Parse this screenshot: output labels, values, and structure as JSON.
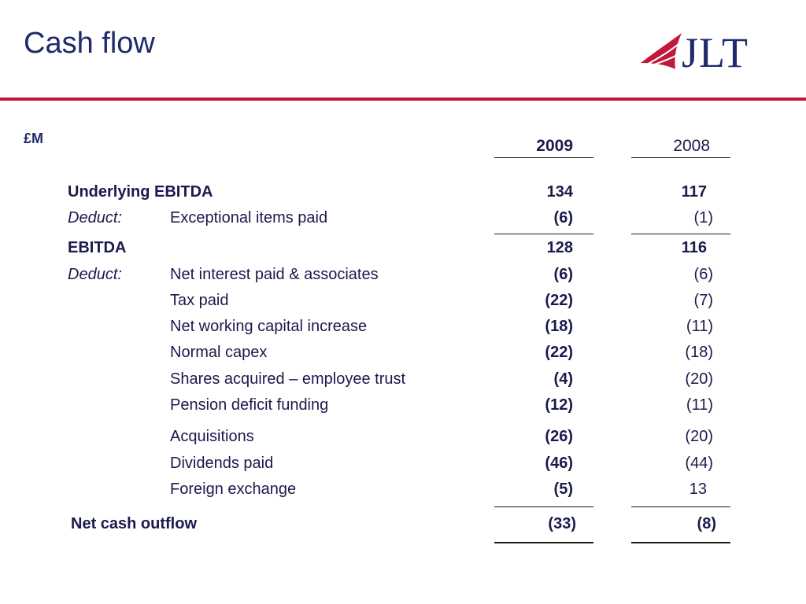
{
  "header": {
    "title": "Cash flow",
    "logo_text": "JLT",
    "accent_color": "#c0193a",
    "title_color": "#1f2a6b"
  },
  "table": {
    "unit": "£M",
    "columns": [
      "2009",
      "2008"
    ],
    "rows": [
      {
        "prefix": "",
        "label": "Underlying EBITDA",
        "y2009": "134",
        "y2008": "117"
      },
      {
        "prefix": "Deduct:",
        "label": "Exceptional items paid",
        "y2009": "(6)",
        "y2008": "(1)"
      },
      {
        "prefix": "",
        "label": "EBITDA",
        "y2009": "128",
        "y2008": "116"
      },
      {
        "prefix": "Deduct:",
        "label": "Net interest paid & associates",
        "y2009": "(6)",
        "y2008": "(6)"
      },
      {
        "prefix": "",
        "label": "Tax paid",
        "y2009": "(22)",
        "y2008": "(7)"
      },
      {
        "prefix": "",
        "label": "Net working capital increase",
        "y2009": "(18)",
        "y2008": "(11)"
      },
      {
        "prefix": "",
        "label": "Normal capex",
        "y2009": "(22)",
        "y2008": "(18)"
      },
      {
        "prefix": "",
        "label": "Shares acquired – employee trust",
        "y2009": "(4)",
        "y2008": "(20)"
      },
      {
        "prefix": "",
        "label": "Pension deficit funding",
        "y2009": "(12)",
        "y2008": "(11)"
      },
      {
        "prefix": "",
        "label": "Acquisitions",
        "y2009": "(26)",
        "y2008": "(20)"
      },
      {
        "prefix": "",
        "label": "Dividends paid",
        "y2009": "(46)",
        "y2008": "(44)"
      },
      {
        "prefix": "",
        "label": "Foreign exchange",
        "y2009": "(5)",
        "y2008": "13"
      },
      {
        "prefix": "",
        "label": "Net cash outflow",
        "y2009": "(33)",
        "y2008": "(8)"
      }
    ]
  }
}
